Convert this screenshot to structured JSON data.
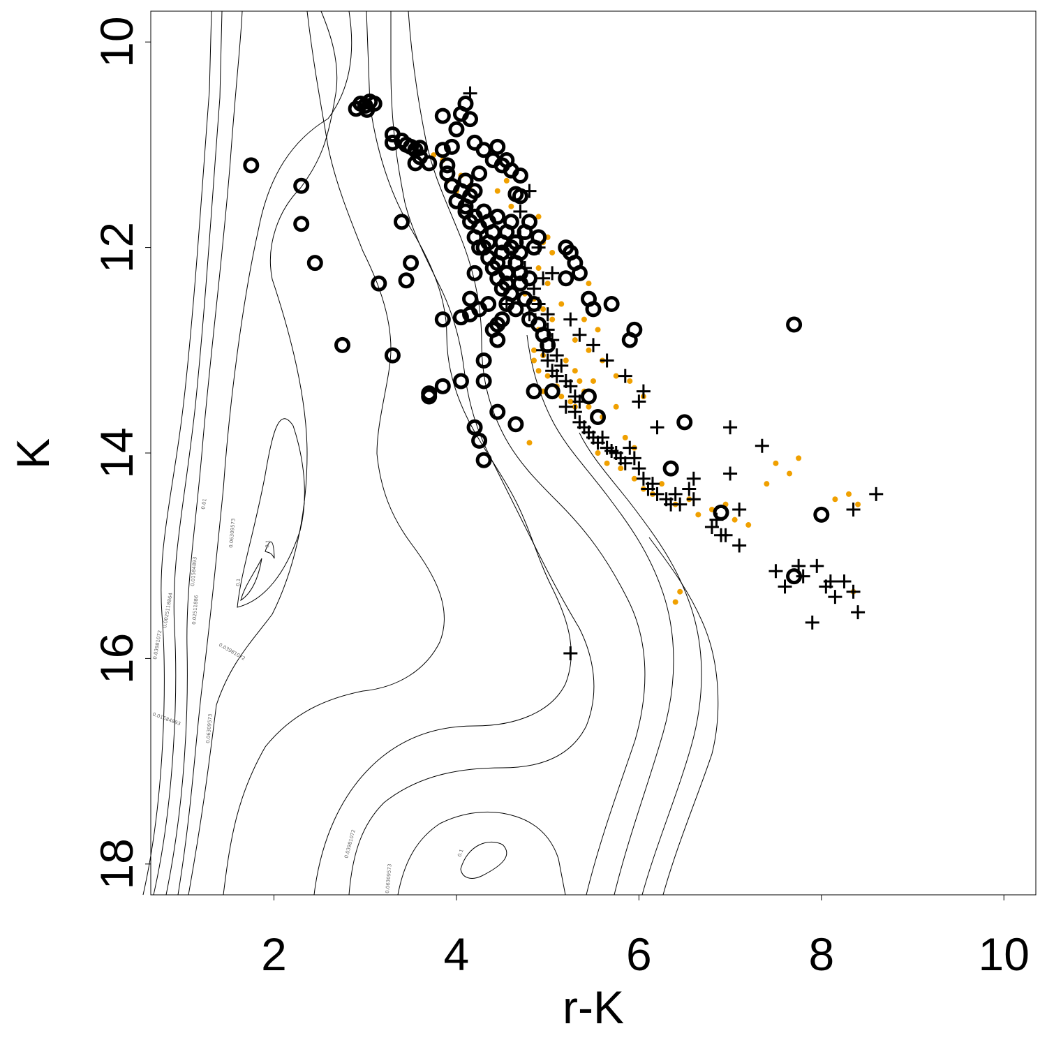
{
  "chart_data": {
    "type": "scatter",
    "title": "",
    "xlabel": "r-K",
    "ylabel": "K",
    "xlim": [
      0.65,
      10.35
    ],
    "ylim": [
      18.3,
      9.7
    ],
    "y_inverted": true,
    "x_ticks": [
      2,
      4,
      6,
      8,
      10
    ],
    "y_ticks": [
      10,
      12,
      14,
      16,
      18
    ],
    "x_tick_labels": [
      "2",
      "4",
      "6",
      "8",
      "10"
    ],
    "y_tick_labels": [
      "10",
      "12",
      "14",
      "16",
      "18"
    ],
    "grid": false,
    "legend": "none",
    "series": [
      {
        "marker": "open-circle",
        "color": "#000000",
        "points": [
          [
            2.9,
            10.65
          ],
          [
            2.95,
            10.6
          ],
          [
            3.0,
            10.62
          ],
          [
            3.05,
            10.58
          ],
          [
            3.1,
            10.6
          ],
          [
            3.02,
            10.66
          ],
          [
            3.3,
            10.9
          ],
          [
            3.3,
            10.98
          ],
          [
            3.4,
            10.96
          ],
          [
            3.45,
            11.0
          ],
          [
            3.5,
            11.02
          ],
          [
            3.55,
            11.05
          ],
          [
            3.6,
            11.03
          ],
          [
            3.55,
            11.18
          ],
          [
            3.6,
            11.12
          ],
          [
            3.7,
            11.18
          ],
          [
            3.85,
            10.72
          ],
          [
            3.85,
            11.05
          ],
          [
            3.9,
            11.2
          ],
          [
            3.9,
            11.28
          ],
          [
            3.95,
            11.02
          ],
          [
            4.0,
            10.85
          ],
          [
            4.05,
            10.7
          ],
          [
            4.1,
            10.6
          ],
          [
            4.15,
            10.75
          ],
          [
            4.2,
            10.98
          ],
          [
            3.95,
            11.4
          ],
          [
            4.0,
            11.55
          ],
          [
            4.05,
            11.45
          ],
          [
            4.1,
            11.35
          ],
          [
            4.1,
            11.6
          ],
          [
            4.15,
            11.5
          ],
          [
            4.2,
            11.45
          ],
          [
            4.25,
            11.28
          ],
          [
            4.3,
            11.05
          ],
          [
            4.4,
            11.15
          ],
          [
            4.45,
            11.02
          ],
          [
            4.5,
            11.2
          ],
          [
            4.55,
            11.15
          ],
          [
            4.6,
            11.25
          ],
          [
            4.65,
            11.48
          ],
          [
            4.7,
            11.3
          ],
          [
            4.7,
            11.5
          ],
          [
            4.1,
            11.65
          ],
          [
            4.15,
            11.75
          ],
          [
            4.2,
            11.7
          ],
          [
            4.25,
            11.8
          ],
          [
            4.3,
            11.65
          ],
          [
            4.35,
            11.75
          ],
          [
            4.4,
            11.85
          ],
          [
            4.45,
            11.7
          ],
          [
            4.5,
            11.95
          ],
          [
            4.55,
            11.85
          ],
          [
            4.6,
            11.75
          ],
          [
            4.65,
            11.95
          ],
          [
            4.7,
            12.05
          ],
          [
            4.75,
            11.85
          ],
          [
            4.8,
            11.75
          ],
          [
            4.85,
            12.0
          ],
          [
            4.9,
            11.9
          ],
          [
            4.3,
            12.0
          ],
          [
            4.35,
            12.1
          ],
          [
            4.4,
            12.2
          ],
          [
            4.5,
            12.05
          ],
          [
            4.55,
            12.25
          ],
          [
            4.2,
            11.9
          ],
          [
            4.25,
            12.0
          ],
          [
            4.35,
            11.95
          ],
          [
            4.45,
            12.15
          ],
          [
            4.6,
            12.0
          ],
          [
            4.65,
            12.15
          ],
          [
            4.7,
            12.25
          ],
          [
            4.2,
            12.25
          ],
          [
            4.45,
            12.3
          ],
          [
            4.5,
            12.4
          ],
          [
            4.55,
            12.35
          ],
          [
            4.6,
            12.45
          ],
          [
            4.7,
            12.35
          ],
          [
            4.75,
            12.5
          ],
          [
            4.8,
            12.3
          ],
          [
            4.15,
            12.5
          ],
          [
            4.15,
            12.65
          ],
          [
            4.25,
            12.6
          ],
          [
            4.35,
            12.55
          ],
          [
            4.45,
            12.75
          ],
          [
            4.5,
            12.7
          ],
          [
            4.55,
            12.55
          ],
          [
            4.65,
            12.6
          ],
          [
            4.8,
            12.7
          ],
          [
            4.85,
            12.55
          ],
          [
            4.9,
            12.75
          ],
          [
            4.95,
            12.85
          ],
          [
            5.0,
            12.95
          ],
          [
            4.4,
            12.8
          ],
          [
            4.45,
            12.9
          ],
          [
            5.2,
            12.0
          ],
          [
            5.25,
            12.05
          ],
          [
            5.3,
            12.15
          ],
          [
            5.35,
            12.25
          ],
          [
            5.2,
            12.3
          ],
          [
            5.45,
            12.5
          ],
          [
            5.5,
            12.6
          ],
          [
            5.7,
            12.55
          ],
          [
            5.95,
            12.8
          ],
          [
            5.9,
            12.9
          ],
          [
            3.85,
            12.7
          ],
          [
            4.05,
            12.68
          ],
          [
            4.3,
            13.1
          ],
          [
            4.3,
            13.3
          ],
          [
            4.05,
            13.3
          ],
          [
            3.85,
            13.35
          ],
          [
            3.7,
            13.42
          ],
          [
            3.7,
            13.45
          ],
          [
            4.45,
            13.6
          ],
          [
            4.65,
            13.72
          ],
          [
            4.85,
            13.4
          ],
          [
            5.05,
            13.4
          ],
          [
            5.45,
            13.45
          ],
          [
            5.55,
            13.65
          ],
          [
            4.2,
            13.75
          ],
          [
            4.25,
            13.88
          ],
          [
            4.3,
            14.07
          ],
          [
            1.75,
            11.2
          ],
          [
            2.3,
            11.4
          ],
          [
            2.3,
            11.77
          ],
          [
            2.45,
            12.15
          ],
          [
            2.75,
            12.95
          ],
          [
            3.15,
            12.35
          ],
          [
            3.3,
            13.05
          ],
          [
            3.4,
            11.75
          ],
          [
            3.5,
            12.15
          ],
          [
            3.45,
            12.32
          ],
          [
            6.35,
            14.15
          ],
          [
            6.5,
            13.7
          ],
          [
            6.9,
            14.58
          ],
          [
            7.7,
            15.2
          ],
          [
            7.7,
            12.75
          ],
          [
            8.0,
            14.6
          ]
        ]
      },
      {
        "marker": "plus",
        "color": "#000000",
        "points": [
          [
            4.15,
            10.5
          ],
          [
            4.8,
            11.45
          ],
          [
            4.7,
            11.65
          ],
          [
            4.7,
            11.9
          ],
          [
            4.9,
            12.0
          ],
          [
            4.6,
            12.1
          ],
          [
            4.75,
            12.2
          ],
          [
            4.85,
            12.4
          ],
          [
            4.95,
            12.3
          ],
          [
            5.05,
            12.25
          ],
          [
            4.55,
            12.55
          ],
          [
            4.8,
            12.65
          ],
          [
            4.9,
            12.55
          ],
          [
            5.0,
            12.65
          ],
          [
            5.0,
            12.8
          ],
          [
            5.05,
            12.9
          ],
          [
            4.95,
            13.0
          ],
          [
            5.0,
            13.1
          ],
          [
            5.05,
            13.2
          ],
          [
            5.1,
            13.25
          ],
          [
            5.1,
            13.05
          ],
          [
            5.15,
            13.15
          ],
          [
            5.2,
            13.3
          ],
          [
            5.25,
            13.35
          ],
          [
            5.3,
            13.45
          ],
          [
            5.35,
            13.5
          ],
          [
            5.2,
            13.55
          ],
          [
            5.3,
            13.6
          ],
          [
            5.35,
            13.7
          ],
          [
            5.4,
            13.75
          ],
          [
            5.45,
            13.8
          ],
          [
            5.5,
            13.85
          ],
          [
            5.55,
            13.9
          ],
          [
            5.6,
            13.85
          ],
          [
            5.65,
            13.95
          ],
          [
            5.7,
            13.98
          ],
          [
            5.75,
            14.0
          ],
          [
            5.8,
            14.05
          ],
          [
            5.85,
            14.1
          ],
          [
            5.9,
            13.95
          ],
          [
            5.95,
            14.05
          ],
          [
            6.0,
            14.15
          ],
          [
            6.05,
            14.25
          ],
          [
            6.1,
            14.35
          ],
          [
            6.15,
            14.3
          ],
          [
            6.2,
            14.4
          ],
          [
            6.3,
            14.45
          ],
          [
            6.35,
            14.5
          ],
          [
            6.4,
            14.4
          ],
          [
            6.45,
            14.5
          ],
          [
            6.55,
            14.35
          ],
          [
            6.6,
            14.25
          ],
          [
            5.25,
            12.7
          ],
          [
            5.35,
            12.85
          ],
          [
            5.5,
            12.95
          ],
          [
            5.65,
            13.1
          ],
          [
            5.85,
            13.25
          ],
          [
            6.0,
            13.5
          ],
          [
            6.05,
            13.4
          ],
          [
            6.2,
            13.75
          ],
          [
            7.0,
            13.75
          ],
          [
            7.35,
            13.93
          ],
          [
            7.0,
            14.2
          ],
          [
            7.1,
            14.55
          ],
          [
            6.95,
            14.8
          ],
          [
            7.1,
            14.9
          ],
          [
            6.8,
            14.72
          ],
          [
            6.9,
            14.8
          ],
          [
            7.5,
            15.15
          ],
          [
            7.6,
            15.3
          ],
          [
            7.75,
            15.1
          ],
          [
            7.8,
            15.2
          ],
          [
            7.95,
            15.1
          ],
          [
            8.05,
            15.3
          ],
          [
            8.1,
            15.25
          ],
          [
            8.15,
            15.4
          ],
          [
            8.25,
            15.25
          ],
          [
            8.35,
            15.35
          ],
          [
            8.4,
            15.55
          ],
          [
            7.9,
            15.65
          ],
          [
            8.35,
            14.55
          ],
          [
            8.6,
            14.4
          ],
          [
            5.25,
            15.95
          ],
          [
            6.6,
            14.45
          ],
          [
            6.85,
            14.65
          ]
        ]
      },
      {
        "marker": "filled-dot",
        "color": "#f0a000",
        "points": [
          [
            3.75,
            11.1
          ],
          [
            3.85,
            11.15
          ],
          [
            3.9,
            11.35
          ],
          [
            4.0,
            11.45
          ],
          [
            4.05,
            11.3
          ],
          [
            4.15,
            11.4
          ],
          [
            4.45,
            11.45
          ],
          [
            4.55,
            11.35
          ],
          [
            4.6,
            11.6
          ],
          [
            4.9,
            11.7
          ],
          [
            4.95,
            11.95
          ],
          [
            5.0,
            11.9
          ],
          [
            5.05,
            12.05
          ],
          [
            4.9,
            12.2
          ],
          [
            5.0,
            12.35
          ],
          [
            4.85,
            12.5
          ],
          [
            4.95,
            12.6
          ],
          [
            5.05,
            12.7
          ],
          [
            4.9,
            12.8
          ],
          [
            4.85,
            13.0
          ],
          [
            4.95,
            13.05
          ],
          [
            4.85,
            13.1
          ],
          [
            4.9,
            13.2
          ],
          [
            5.0,
            13.25
          ],
          [
            5.1,
            13.35
          ],
          [
            4.95,
            13.4
          ],
          [
            5.15,
            13.45
          ],
          [
            5.25,
            13.5
          ],
          [
            5.3,
            13.55
          ],
          [
            5.4,
            13.4
          ],
          [
            5.5,
            13.3
          ],
          [
            5.45,
            13.55
          ],
          [
            5.6,
            13.65
          ],
          [
            5.75,
            13.55
          ],
          [
            5.85,
            13.85
          ],
          [
            5.95,
            13.95
          ],
          [
            5.55,
            14.0
          ],
          [
            5.65,
            14.1
          ],
          [
            5.8,
            14.15
          ],
          [
            5.95,
            14.25
          ],
          [
            6.05,
            14.35
          ],
          [
            6.15,
            14.4
          ],
          [
            6.25,
            14.3
          ],
          [
            6.4,
            14.5
          ],
          [
            6.55,
            14.45
          ],
          [
            6.65,
            14.6
          ],
          [
            6.8,
            14.55
          ],
          [
            6.95,
            14.5
          ],
          [
            7.05,
            14.65
          ],
          [
            7.2,
            14.7
          ],
          [
            7.4,
            14.3
          ],
          [
            7.5,
            14.1
          ],
          [
            7.65,
            14.2
          ],
          [
            7.75,
            14.05
          ],
          [
            8.15,
            14.45
          ],
          [
            8.3,
            14.4
          ],
          [
            8.4,
            14.5
          ],
          [
            8.35,
            15.35
          ],
          [
            6.45,
            15.35
          ],
          [
            6.4,
            15.45
          ],
          [
            5.3,
            12.9
          ],
          [
            5.45,
            13.0
          ],
          [
            5.6,
            13.1
          ],
          [
            5.75,
            13.25
          ],
          [
            5.2,
            13.1
          ],
          [
            5.3,
            13.2
          ],
          [
            5.35,
            13.3
          ],
          [
            5.9,
            13.3
          ],
          [
            6.05,
            13.45
          ],
          [
            4.8,
            13.9
          ],
          [
            5.45,
            12.35
          ],
          [
            5.4,
            12.7
          ],
          [
            5.55,
            12.8
          ],
          [
            5.15,
            12.55
          ],
          [
            4.75,
            12.45
          ]
        ]
      }
    ],
    "contour_labels": [
      "0.01",
      "0.06309573",
      "0.1",
      "0.1",
      "0.01584893",
      "0.02511886",
      "0.03981072",
      "0.0025118864",
      "0.03981072",
      "0.06309573",
      "0.01584893",
      "0.03981072",
      "0.06309573",
      "0.1"
    ]
  }
}
